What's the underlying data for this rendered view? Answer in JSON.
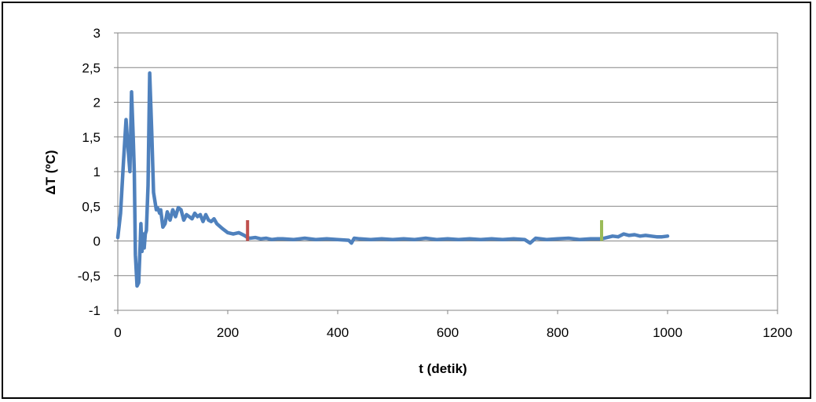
{
  "chart_data": {
    "type": "line",
    "title": "",
    "xlabel": "t (detik)",
    "ylabel": "ΔT (ºC)",
    "xlim": [
      0,
      1200
    ],
    "ylim": [
      -1,
      3
    ],
    "x_ticks": [
      0,
      200,
      400,
      600,
      800,
      1000,
      1200
    ],
    "x_tick_labels": [
      "0",
      "200",
      "400",
      "600",
      "800",
      "1000",
      "1200"
    ],
    "y_ticks": [
      -1,
      -0.5,
      0,
      0.5,
      1,
      1.5,
      2,
      2.5,
      3
    ],
    "y_tick_labels": [
      "-1",
      "-0,5",
      "0",
      "0,5",
      "1",
      "1,5",
      "2",
      "2,5",
      "3"
    ],
    "grid": "horizontal",
    "legend": "none",
    "colors": {
      "series": "#4f81bd",
      "marker_start": "#c0504d",
      "marker_end": "#9bbb59",
      "grid": "#868686"
    },
    "series": [
      {
        "x": [
          0,
          5,
          10,
          15,
          18,
          22,
          25,
          28,
          30,
          32,
          35,
          38,
          40,
          42,
          44,
          46,
          48,
          50,
          52,
          55,
          58,
          62,
          65,
          68,
          70,
          72,
          74,
          76,
          78,
          82,
          86,
          90,
          95,
          100,
          105,
          110,
          115,
          120,
          125,
          130,
          135,
          140,
          145,
          150,
          155,
          160,
          165,
          170,
          175,
          180,
          190,
          200,
          210,
          220,
          230,
          236,
          240,
          250,
          260,
          270,
          280,
          290,
          300,
          320,
          340,
          360,
          380,
          400,
          420,
          425,
          430,
          440,
          460,
          480,
          500,
          520,
          540,
          560,
          580,
          600,
          620,
          640,
          660,
          680,
          700,
          720,
          740,
          750,
          760,
          780,
          800,
          820,
          840,
          860,
          880,
          890,
          900,
          910,
          920,
          930,
          940,
          950,
          960,
          970,
          980,
          990,
          1000
        ],
        "y": [
          0.05,
          0.4,
          1.1,
          1.75,
          1.4,
          1.0,
          2.15,
          1.5,
          1.0,
          -0.2,
          -0.65,
          -0.6,
          -0.2,
          0.25,
          -0.15,
          0.1,
          -0.1,
          0.1,
          0.15,
          0.8,
          2.42,
          1.5,
          0.7,
          0.55,
          0.45,
          0.48,
          0.45,
          0.4,
          0.45,
          0.2,
          0.25,
          0.42,
          0.3,
          0.45,
          0.35,
          0.48,
          0.45,
          0.3,
          0.38,
          0.35,
          0.32,
          0.4,
          0.35,
          0.38,
          0.28,
          0.38,
          0.3,
          0.28,
          0.32,
          0.25,
          0.18,
          0.12,
          0.1,
          0.12,
          0.08,
          0.05,
          0.04,
          0.05,
          0.03,
          0.04,
          0.02,
          0.03,
          0.03,
          0.02,
          0.04,
          0.02,
          0.03,
          0.02,
          0.01,
          -0.03,
          0.04,
          0.03,
          0.02,
          0.03,
          0.02,
          0.03,
          0.02,
          0.04,
          0.02,
          0.03,
          0.02,
          0.03,
          0.02,
          0.03,
          0.02,
          0.03,
          0.02,
          -0.03,
          0.04,
          0.02,
          0.03,
          0.04,
          0.02,
          0.03,
          0.03,
          0.05,
          0.07,
          0.06,
          0.1,
          0.08,
          0.09,
          0.07,
          0.08,
          0.07,
          0.06,
          0.06,
          0.07
        ]
      }
    ],
    "markers": [
      {
        "x": 236,
        "y_from": 0.0,
        "y_to": 0.3,
        "color": "#c0504d"
      },
      {
        "x": 880,
        "y_from": 0.0,
        "y_to": 0.3,
        "color": "#9bbb59"
      }
    ]
  }
}
